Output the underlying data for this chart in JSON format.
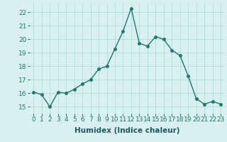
{
  "x": [
    0,
    1,
    2,
    3,
    4,
    5,
    6,
    7,
    8,
    9,
    10,
    11,
    12,
    13,
    14,
    15,
    16,
    17,
    18,
    19,
    20,
    21,
    22,
    23
  ],
  "y": [
    16.1,
    15.9,
    15.0,
    16.1,
    16.0,
    16.3,
    16.7,
    17.0,
    17.8,
    18.0,
    19.3,
    20.6,
    22.3,
    19.7,
    19.5,
    20.2,
    20.0,
    19.2,
    18.8,
    17.3,
    15.6,
    15.2,
    15.4,
    15.2
  ],
  "line_color": "#1a7a6e",
  "marker": "o",
  "marker_size": 2.5,
  "bg_color": "#d8f0f0",
  "grid_color": "#a8d8d8",
  "xlabel": "Humidex (Indice chaleur)",
  "ylabel": "",
  "xlim": [
    -0.5,
    23.5
  ],
  "ylim": [
    14.5,
    22.7
  ],
  "xticks": [
    0,
    1,
    2,
    3,
    4,
    5,
    6,
    7,
    8,
    9,
    10,
    11,
    12,
    13,
    14,
    15,
    16,
    17,
    18,
    19,
    20,
    21,
    22,
    23
  ],
  "yticks": [
    15,
    16,
    17,
    18,
    19,
    20,
    21,
    22
  ],
  "xlabel_fontsize": 7.5,
  "tick_fontsize": 6.5,
  "line_width": 1.0
}
